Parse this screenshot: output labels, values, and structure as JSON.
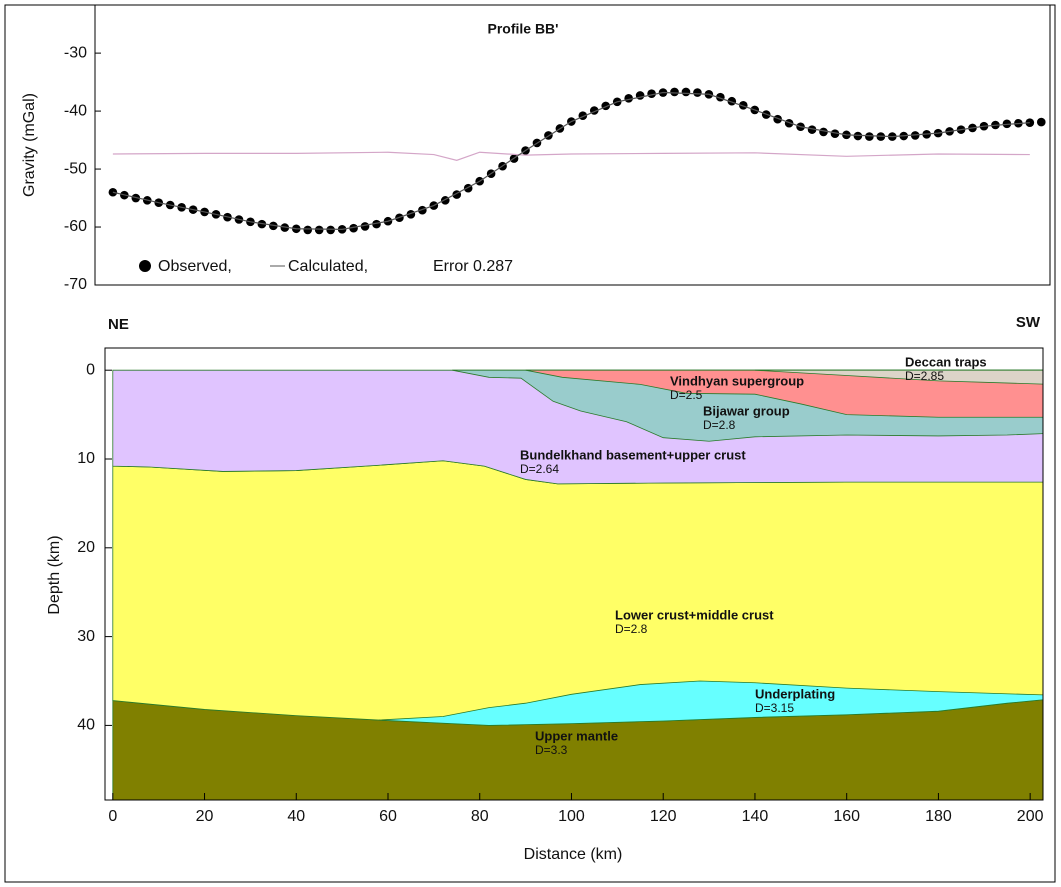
{
  "chart_data": [
    {
      "type": "scatter",
      "title": "Profile BB'",
      "y_label": "Gravity (mGal)",
      "xlim": [
        -3.9,
        204.4
      ],
      "ylim": [
        -70,
        -21.7
      ],
      "yticks": [
        -30,
        -40,
        -50,
        -60,
        -70
      ],
      "annotation": "Error 0.287",
      "series": [
        {
          "name": "Observed,",
          "color": "#000000",
          "mode": "markers",
          "x": [
            0,
            2.5,
            5,
            7.5,
            10,
            12.5,
            15,
            17.5,
            20,
            22.5,
            25,
            27.5,
            30,
            32.5,
            35,
            37.5,
            40,
            42.5,
            45,
            47.5,
            50,
            52.5,
            55,
            57.5,
            60,
            62.5,
            65,
            67.5,
            70,
            72.5,
            75,
            77.5,
            80,
            82.5,
            85,
            87.5,
            90,
            92.5,
            95,
            97.5,
            100,
            102.5,
            105,
            107.5,
            110,
            112.5,
            115,
            117.5,
            120,
            122.5,
            125,
            127.5,
            130,
            132.5,
            135,
            137.5,
            140,
            142.5,
            145,
            147.5,
            150,
            152.5,
            155,
            157.5,
            160,
            162.5,
            165,
            167.5,
            170,
            172.5,
            175,
            177.5,
            180,
            182.5,
            185,
            187.5,
            190,
            192.5,
            195,
            197.5,
            200,
            202.5
          ],
          "values": [
            -54.0,
            -54.5,
            -55.0,
            -55.4,
            -55.8,
            -56.2,
            -56.6,
            -57.0,
            -57.4,
            -57.8,
            -58.3,
            -58.7,
            -59.1,
            -59.5,
            -59.8,
            -60.1,
            -60.3,
            -60.5,
            -60.5,
            -60.5,
            -60.4,
            -60.2,
            -59.9,
            -59.5,
            -59.0,
            -58.4,
            -57.8,
            -57.1,
            -56.3,
            -55.4,
            -54.4,
            -53.3,
            -52.1,
            -50.8,
            -49.5,
            -48.2,
            -46.8,
            -45.5,
            -44.2,
            -43.0,
            -41.8,
            -40.8,
            -39.9,
            -39.1,
            -38.4,
            -37.8,
            -37.3,
            -37.0,
            -36.8,
            -36.7,
            -36.7,
            -36.8,
            -37.1,
            -37.6,
            -38.3,
            -39.0,
            -39.8,
            -40.6,
            -41.4,
            -42.1,
            -42.7,
            -43.2,
            -43.6,
            -43.9,
            -44.1,
            -44.3,
            -44.4,
            -44.4,
            -44.4,
            -44.3,
            -44.2,
            -44.0,
            -43.8,
            -43.5,
            -43.2,
            -42.9,
            -42.6,
            -42.4,
            -42.2,
            -42.1,
            -42.0,
            -41.9
          ]
        },
        {
          "name": "Calculated,",
          "color": "#555555",
          "mode": "line",
          "x": [
            0,
            10,
            20,
            30,
            40,
            50,
            60,
            70,
            80,
            90,
            100,
            110,
            120,
            130,
            140,
            150,
            160,
            170,
            180,
            190,
            200
          ],
          "values": [
            -54,
            -55.8,
            -57.4,
            -59.1,
            -60.3,
            -60.4,
            -59,
            -56.3,
            -52.1,
            -46.8,
            -41.8,
            -38.4,
            -36.8,
            -37.1,
            -39.8,
            -42.7,
            -44.1,
            -44.4,
            -43.8,
            -42.6,
            -42.0
          ]
        },
        {
          "color": "#d4a6c8",
          "mode": "line",
          "x": [
            0,
            20,
            40,
            60,
            70,
            75,
            80,
            90,
            100,
            120,
            140,
            160,
            180,
            200
          ],
          "values": [
            -47.4,
            -47.3,
            -47.3,
            -47.1,
            -47.5,
            -48.5,
            -47.1,
            -47.6,
            -47.4,
            -47.3,
            -47.2,
            -47.8,
            -47.4,
            -47.5
          ]
        }
      ]
    },
    {
      "type": "polygon",
      "x_label": "Distance (km)",
      "y_label": "Depth (km)",
      "left_label": "NE",
      "right_label": "SW",
      "xlim": [
        -1.7,
        202.8
      ],
      "ylim": [
        48.4,
        -2.5
      ],
      "xticks": [
        0,
        20,
        40,
        60,
        80,
        100,
        120,
        140,
        160,
        180,
        200
      ],
      "yticks": [
        0,
        10,
        20,
        30,
        40
      ],
      "layers": [
        {
          "name": "Upper mantle",
          "density": "D=3.3",
          "color": "#808000",
          "x": [
            0,
            20,
            40,
            58,
            70,
            82,
            100,
            120,
            140,
            160,
            180,
            195,
            205,
            205,
            0
          ],
          "depth": [
            37.2,
            38.2,
            38.9,
            39.4,
            39.7,
            40.0,
            39.8,
            39.5,
            39.1,
            38.8,
            38.4,
            37.5,
            37.0,
            48.4,
            48.4
          ]
        },
        {
          "name": "Lower crust+middle crust",
          "density": "D=2.8",
          "color": "#ffff66",
          "x": [
            0,
            8,
            24,
            40,
            58,
            72,
            81,
            90,
            97,
            120,
            160,
            205,
            205,
            195,
            180,
            160,
            140,
            120,
            100,
            82,
            70,
            58,
            40,
            20,
            0
          ],
          "depth": [
            10.8,
            10.9,
            11.4,
            11.3,
            10.7,
            10.2,
            10.8,
            12.3,
            12.8,
            12.7,
            12.6,
            12.6,
            37.0,
            37.5,
            38.4,
            38.8,
            39.1,
            39.5,
            39.8,
            40.0,
            39.7,
            39.4,
            38.9,
            38.2,
            37.2
          ]
        },
        {
          "name": "Underplating",
          "density": "D=3.15",
          "color": "#66ffff",
          "x": [
            58,
            72,
            82,
            90,
            100,
            115,
            128,
            140,
            160,
            180,
            205,
            205,
            195,
            180,
            160,
            140,
            120,
            100,
            82,
            70
          ],
          "depth": [
            39.4,
            39.0,
            38.0,
            37.5,
            36.5,
            35.4,
            35.0,
            35.2,
            35.8,
            36.2,
            36.6,
            37.0,
            37.5,
            38.4,
            38.8,
            39.1,
            39.5,
            39.8,
            40.0,
            39.7
          ]
        },
        {
          "name": "Bundelkhand basement+upper crust",
          "density": "D=2.64",
          "color": "#e0c4ff",
          "x": [
            0,
            205,
            205,
            160,
            120,
            97,
            90,
            81,
            72,
            58,
            40,
            24,
            8,
            0
          ],
          "depth": [
            0,
            0,
            12.6,
            12.6,
            12.7,
            12.8,
            12.3,
            10.8,
            10.2,
            10.7,
            11.3,
            11.4,
            10.9,
            10.8
          ]
        },
        {
          "name": "Bijawar group",
          "density": "D=2.8",
          "color": "#99cccc",
          "x": [
            74,
            82,
            89,
            96,
            102,
            112,
            120,
            130,
            140,
            160,
            180,
            195,
            205,
            205
          ],
          "depth": [
            0,
            0.8,
            0.9,
            3.5,
            4.6,
            5.8,
            7.6,
            8.0,
            7.5,
            7.3,
            7.4,
            7.3,
            7.1,
            0
          ]
        },
        {
          "name": "Vindhyan supergroup",
          "density": "D=2.5",
          "color": "#ff9090",
          "x": [
            90,
            98,
            115,
            125,
            140,
            150,
            160,
            180,
            205,
            205
          ],
          "depth": [
            0,
            0.8,
            1.6,
            2.6,
            2.7,
            3.8,
            5.0,
            5.3,
            5.3,
            0
          ]
        },
        {
          "name": "Deccan traps",
          "density": "D=2.85",
          "color": "#dcd4c8",
          "x": [
            140,
            160,
            180,
            205,
            205
          ],
          "depth": [
            0,
            0.6,
            1.2,
            1.6,
            0
          ]
        }
      ]
    }
  ]
}
